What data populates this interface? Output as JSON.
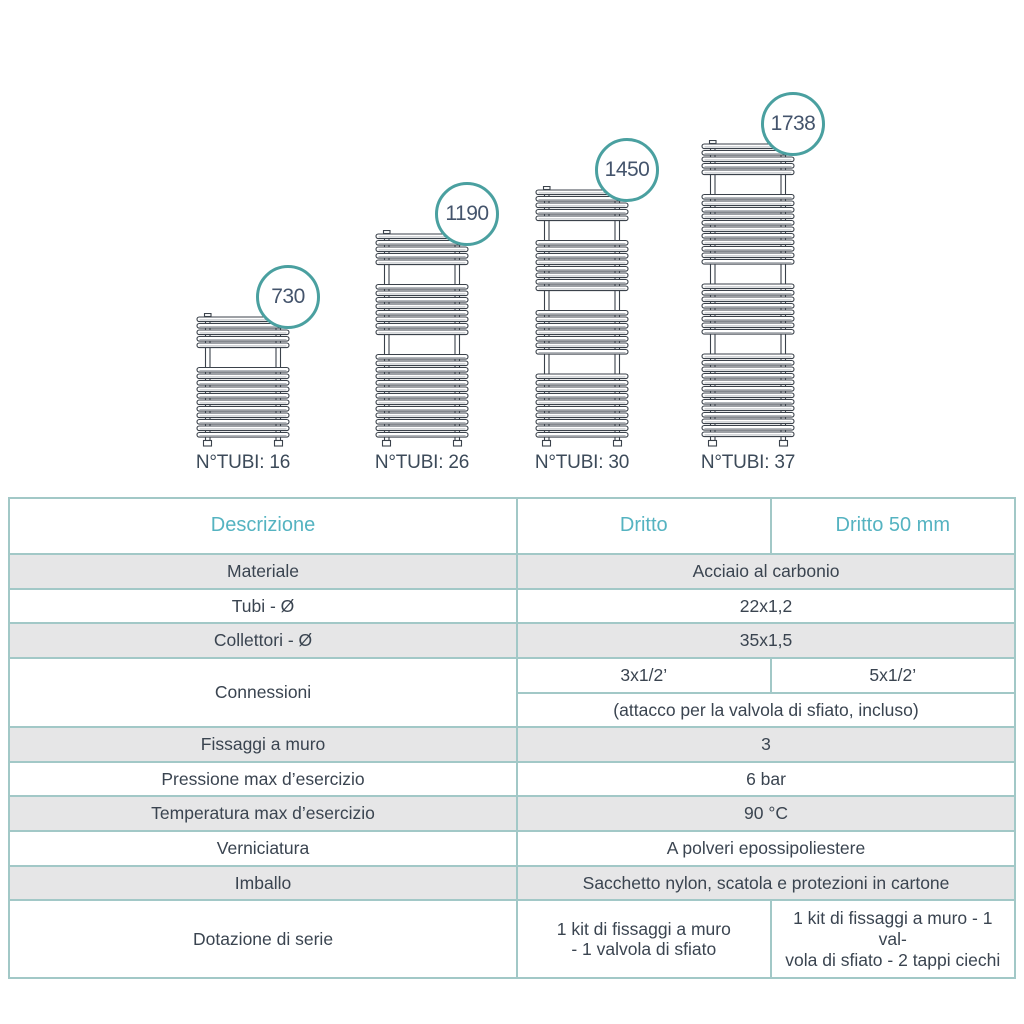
{
  "colors": {
    "accent_teal": "#4aa0a0",
    "header_text": "#55b3c1",
    "table_border": "#a2c8c7",
    "row_alt_bg": "#e6e6e7",
    "text_dark": "#3a4450",
    "line_dark": "#3b424b",
    "tube_inner_line": "#a8adb3"
  },
  "diagram": {
    "radiators": [
      {
        "height_mm": "730",
        "tubes_label": "N°TUBI: 16",
        "tube_groups": [
          5,
          11
        ]
      },
      {
        "height_mm": "1190",
        "tubes_label": "N°TUBI: 26",
        "tube_groups": [
          5,
          8,
          13
        ]
      },
      {
        "height_mm": "1450",
        "tubes_label": "N°TUBI: 30",
        "tube_groups": [
          5,
          8,
          7,
          10
        ]
      },
      {
        "height_mm": "1738",
        "tubes_label": "N°TUBI: 37",
        "tube_groups": [
          5,
          11,
          8,
          13
        ]
      }
    ]
  },
  "table": {
    "headers": [
      "Descrizione",
      "Dritto",
      "Dritto 50 mm"
    ],
    "rows": {
      "materiale": {
        "label": "Materiale",
        "value": "Acciaio al carbonio"
      },
      "tubi": {
        "label": "Tubi - Ø",
        "value": "22x1,2"
      },
      "collettori": {
        "label": "Collettori - Ø",
        "value": "35x1,5"
      },
      "connessioni": {
        "label": "Connessioni",
        "dritto": "3x1/2’",
        "dritto_50": "5x1/2’",
        "note": "(attacco per la valvola di sfiato, incluso)"
      },
      "fissaggi": {
        "label": "Fissaggi a muro",
        "value": "3"
      },
      "pressione": {
        "label": "Pressione max d’esercizio",
        "value": "6 bar"
      },
      "temperatura": {
        "label": "Temperatura max d’esercizio",
        "value": "90 °C"
      },
      "verniciatura": {
        "label": "Verniciatura",
        "value": "A polveri epossipoliestere"
      },
      "imballo": {
        "label": "Imballo",
        "value": "Sacchetto nylon, scatola e protezioni in cartone"
      },
      "dotazione": {
        "label": "Dotazione di serie",
        "dritto": "1 kit di fissaggi a muro\n- 1 valvola di sfiato",
        "dritto_50": "1 kit di fissaggi a muro - 1 val-\nvola di sfiato  - 2 tappi ciechi"
      }
    }
  }
}
